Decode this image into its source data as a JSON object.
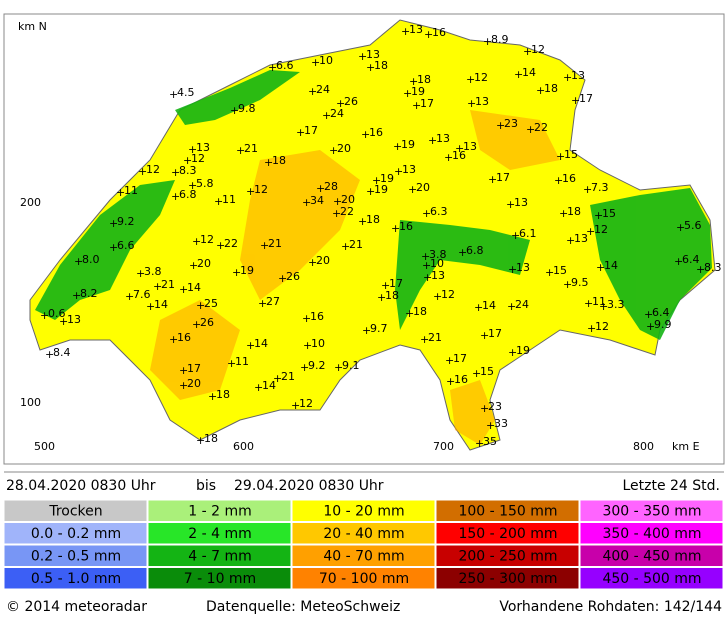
{
  "map": {
    "axis_labels": {
      "north": "km N",
      "east": "km E",
      "y200": "200",
      "y100": "100",
      "x500": "500",
      "x600": "600",
      "x700": "700",
      "x800": "800"
    },
    "stations": [
      "13",
      "16",
      "8.9",
      "12",
      "13",
      "10",
      "18",
      "6.6",
      "12",
      "14",
      "13",
      "18",
      "18",
      "4.5",
      "24",
      "19",
      "26",
      "17",
      "17",
      "13",
      "9.8",
      "24",
      "23",
      "22",
      "17",
      "16",
      "19",
      "13",
      "13",
      "13",
      "21",
      "20",
      "16",
      "15",
      "12",
      "18",
      "12",
      "8.3",
      "13",
      "17",
      "16",
      "7.3",
      "11",
      "5.8",
      "28",
      "19",
      "19",
      "20",
      "6.8",
      "12",
      "11",
      "34",
      "20",
      "13",
      "15",
      "5.6",
      "9.2",
      "22",
      "18",
      "6.3",
      "18",
      "16",
      "12",
      "13",
      "6.1",
      "12",
      "22",
      "21",
      "21",
      "6.6",
      "6.8",
      "3.8",
      "6.4",
      "8.0",
      "20",
      "20",
      "10",
      "13",
      "15",
      "14",
      "8.3",
      "3.8",
      "19",
      "26",
      "13",
      "17",
      "9.5",
      "21",
      "14",
      "8.2",
      "7.6",
      "12",
      "18",
      "11",
      "27",
      "14",
      "25",
      "14",
      "24",
      "3.3",
      "6.4",
      "0.6",
      "13",
      "18",
      "16",
      "26",
      "9.9",
      "12",
      "9.7",
      "17",
      "16",
      "21",
      "14",
      "10",
      "8.4",
      "19",
      "9.2",
      "9.1",
      "11",
      "17",
      "17",
      "15",
      "16",
      "21",
      "20",
      "14",
      "18",
      "12",
      "23",
      "33",
      "18",
      "35"
    ]
  },
  "period": {
    "from": "28.04.2020 0830 Uhr",
    "sep": "bis",
    "to": "29.04.2020 0830 Uhr",
    "span": "Letzte 24 Std."
  },
  "legend": [
    [
      {
        "label": "Trocken",
        "color": "#c8c8c8"
      },
      {
        "label": "0.0 - 0.2 mm",
        "color": "#a0b4fa"
      },
      {
        "label": "0.2 - 0.5 mm",
        "color": "#7896f5"
      },
      {
        "label": "0.5 - 1.0 mm",
        "color": "#3c5ff5"
      }
    ],
    [
      {
        "label": "1 - 2 mm",
        "color": "#aaf07a"
      },
      {
        "label": "2 - 4 mm",
        "color": "#28e628"
      },
      {
        "label": "4 - 7 mm",
        "color": "#14b414"
      },
      {
        "label": "7 - 10 mm",
        "color": "#0a8c0a"
      }
    ],
    [
      {
        "label": "10 - 20 mm",
        "color": "#ffff00"
      },
      {
        "label": "20 - 40 mm",
        "color": "#ffc800"
      },
      {
        "label": "40 - 70 mm",
        "color": "#ffa000"
      },
      {
        "label": "70 - 100 mm",
        "color": "#ff8200"
      }
    ],
    [
      {
        "label": "100 - 150 mm",
        "color": "#d26e00"
      },
      {
        "label": "150 - 200 mm",
        "color": "#ff0000"
      },
      {
        "label": "200 - 250 mm",
        "color": "#c80000"
      },
      {
        "label": "250 - 300 mm",
        "color": "#8c0000"
      }
    ],
    [
      {
        "label": "300 - 350 mm",
        "color": "#ff64ff"
      },
      {
        "label": "350 - 400 mm",
        "color": "#ff00ff"
      },
      {
        "label": "400 - 450 mm",
        "color": "#c800aa"
      },
      {
        "label": "450 - 500 mm",
        "color": "#9600ff"
      }
    ]
  ],
  "footer": {
    "copyright": "© 2014 meteoradar",
    "source": "Datenquelle: MeteoSchweiz",
    "raw": "Vorhandene Rohdaten: 142/144"
  }
}
